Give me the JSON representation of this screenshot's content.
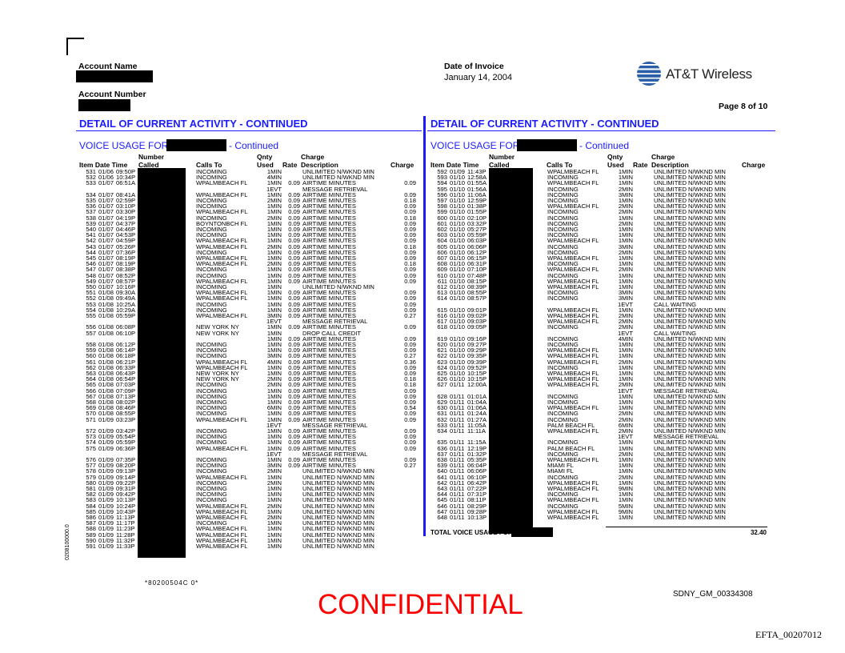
{
  "header": {
    "account_name_label": "Account Name",
    "account_number_label": "Account Number",
    "invoice_date_label": "Date of Invoice",
    "invoice_date": "January 14, 2004",
    "brand": "AT&T Wireless",
    "page_label": "Page  8 of 10"
  },
  "section_title": "DETAIL OF CURRENT ACTIVITY - CONTINUED",
  "voice_usage_for": "VOICE USAGE FOR",
  "continued": "- Continued",
  "columns": {
    "number": "Number",
    "called": "Called",
    "item_date_time": "Item Date  Time",
    "calls_to": "Calls To",
    "qnty": "Qnty",
    "used": "Used",
    "rate": "Rate",
    "charge_top": "Charge",
    "description": "Description",
    "charge": "Charge"
  },
  "colors": {
    "accent": "#1a1aff",
    "confidential": "#ff0000"
  },
  "left_rows": [
    [
      "531",
      "01/06",
      "09:50P",
      "INCOMING",
      "1MIN",
      "",
      "UNLIMITED N/WKND MIN",
      ""
    ],
    [
      "532",
      "01/06",
      "10:34P",
      "INCOMING",
      "4MIN",
      "",
      "UNLIMITED N/WKND MIN",
      ""
    ],
    [
      "533",
      "01/07",
      "06:51A",
      "WPALMBEACH FL",
      "1MIN",
      "0.09",
      "AIRTIME MINUTES",
      "0.09"
    ],
    [
      "",
      "",
      "",
      "",
      "1EVT",
      "",
      "MESSAGE RETRIEVAL",
      ""
    ],
    [
      "534",
      "01/07",
      "08:41A",
      "WPALMBEACH FL",
      "1MIN",
      "0.09",
      "AIRTIME MINUTES",
      "0.09"
    ],
    [
      "535",
      "01/07",
      "02:59P",
      "INCOMING",
      "2MIN",
      "0.09",
      "AIRTIME MINUTES",
      "0.18"
    ],
    [
      "536",
      "01/07",
      "03:10P",
      "INCOMING",
      "1MIN",
      "0.09",
      "AIRTIME MINUTES",
      "0.09"
    ],
    [
      "537",
      "01/07",
      "03:30P",
      "WPALMBEACH FL",
      "1MIN",
      "0.09",
      "AIRTIME MINUTES",
      "0.09"
    ],
    [
      "538",
      "01/07",
      "04:19P",
      "INCOMING",
      "2MIN",
      "0.09",
      "AIRTIME MINUTES",
      "0.18"
    ],
    [
      "539",
      "01/07",
      "04:37P",
      "BOYNTONBCH FL",
      "1MIN",
      "0.09",
      "AIRTIME MINUTES",
      "0.09"
    ],
    [
      "540",
      "01/07",
      "04:46P",
      "INCOMING",
      "1MIN",
      "0.09",
      "AIRTIME MINUTES",
      "0.09"
    ],
    [
      "541",
      "01/07",
      "04:53P",
      "INCOMING",
      "1MIN",
      "0.09",
      "AIRTIME MINUTES",
      "0.09"
    ],
    [
      "542",
      "01/07",
      "04:59P",
      "WPALMBEACH FL",
      "1MIN",
      "0.09",
      "AIRTIME MINUTES",
      "0.09"
    ],
    [
      "543",
      "01/07",
      "05:26P",
      "WPALMBEACH FL",
      "2MIN",
      "0.09",
      "AIRTIME MINUTES",
      "0.18"
    ],
    [
      "544",
      "01/07",
      "07:36P",
      "INCOMING",
      "1MIN",
      "0.09",
      "AIRTIME MINUTES",
      "0.09"
    ],
    [
      "545",
      "01/07",
      "08:19P",
      "WPALMBEACH FL",
      "1MIN",
      "0.09",
      "AIRTIME MINUTES",
      "0.09"
    ],
    [
      "546",
      "01/07",
      "08:19P",
      "WPALMBEACH FL",
      "2MIN",
      "0.09",
      "AIRTIME MINUTES",
      "0.18"
    ],
    [
      "547",
      "01/07",
      "08:38P",
      "INCOMING",
      "1MIN",
      "0.09",
      "AIRTIME MINUTES",
      "0.09"
    ],
    [
      "548",
      "01/07",
      "08:52P",
      "INCOMING",
      "1MIN",
      "0.09",
      "AIRTIME MINUTES",
      "0.09"
    ],
    [
      "549",
      "01/07",
      "08:57P",
      "WPALMBEACH FL",
      "1MIN",
      "0.09",
      "AIRTIME MINUTES",
      "0.09"
    ],
    [
      "550",
      "01/07",
      "10:16P",
      "INCOMING",
      "1MIN",
      "",
      "UNLIMITED N/WKND MIN",
      ""
    ],
    [
      "551",
      "01/08",
      "09:30A",
      "WPALMBEACH FL",
      "1MIN",
      "0.09",
      "AIRTIME MINUTES",
      "0.09"
    ],
    [
      "552",
      "01/08",
      "09:49A",
      "WPALMBEACH FL",
      "1MIN",
      "0.09",
      "AIRTIME MINUTES",
      "0.09"
    ],
    [
      "553",
      "01/08",
      "10:25A",
      "INCOMING",
      "1MIN",
      "0.09",
      "AIRTIME MINUTES",
      "0.09"
    ],
    [
      "554",
      "01/08",
      "10:29A",
      "INCOMING",
      "1MIN",
      "0.09",
      "AIRTIME MINUTES",
      "0.09"
    ],
    [
      "555",
      "01/08",
      "05:59P",
      "WPALMBEACH FL",
      "3MIN",
      "0.09",
      "AIRTIME MINUTES",
      "0.27"
    ],
    [
      "",
      "",
      "",
      "",
      "1EVT",
      "",
      "MESSAGE RETRIEVAL",
      ""
    ],
    [
      "556",
      "01/08",
      "06:08P",
      "NEW YORK NY",
      "1MIN",
      "0.09",
      "AIRTIME MINUTES",
      "0.09"
    ],
    [
      "557",
      "01/08",
      "06:10P",
      "NEW YORK NY",
      "1MIN",
      "",
      "DROP CALL CREDIT",
      ""
    ],
    [
      "",
      "",
      "",
      "",
      "1MIN",
      "0.09",
      "AIRTIME MINUTES",
      "0.09"
    ],
    [
      "558",
      "01/08",
      "06:12P",
      "INCOMING",
      "1MIN",
      "0.09",
      "AIRTIME MINUTES",
      "0.09"
    ],
    [
      "559",
      "01/08",
      "06:14P",
      "INCOMING",
      "1MIN",
      "0.09",
      "AIRTIME MINUTES",
      "0.09"
    ],
    [
      "560",
      "01/08",
      "06:18P",
      "INCOMING",
      "3MIN",
      "0.09",
      "AIRTIME MINUTES",
      "0.27"
    ],
    [
      "561",
      "01/08",
      "06:21P",
      "WPALMBEACH FL",
      "4MIN",
      "0.09",
      "AIRTIME MINUTES",
      "0.36"
    ],
    [
      "562",
      "01/08",
      "06:33P",
      "WPALMBEACH FL",
      "1MIN",
      "0.09",
      "AIRTIME MINUTES",
      "0.09"
    ],
    [
      "563",
      "01/08",
      "06:43P",
      "NEW YORK NY",
      "1MIN",
      "0.09",
      "AIRTIME MINUTES",
      "0.09"
    ],
    [
      "564",
      "01/08",
      "06:54P",
      "NEW YORK NY",
      "2MIN",
      "0.09",
      "AIRTIME MINUTES",
      "0.18"
    ],
    [
      "565",
      "01/08",
      "07:03P",
      "INCOMING",
      "2MIN",
      "0.09",
      "AIRTIME MINUTES",
      "0.18"
    ],
    [
      "566",
      "01/08",
      "07:09P",
      "INCOMING",
      "1MIN",
      "0.09",
      "AIRTIME MINUTES",
      "0.09"
    ],
    [
      "567",
      "01/08",
      "07:13P",
      "INCOMING",
      "1MIN",
      "0.09",
      "AIRTIME MINUTES",
      "0.09"
    ],
    [
      "568",
      "01/08",
      "08:02P",
      "INCOMING",
      "1MIN",
      "0.09",
      "AIRTIME MINUTES",
      "0.09"
    ],
    [
      "569",
      "01/08",
      "08:46P",
      "INCOMING",
      "6MIN",
      "0.09",
      "AIRTIME MINUTES",
      "0.54"
    ],
    [
      "570",
      "01/08",
      "08:55P",
      "INCOMING",
      "1MIN",
      "0.09",
      "AIRTIME MINUTES",
      "0.09"
    ],
    [
      "571",
      "01/09",
      "03:23P",
      "WPALMBEACH FL",
      "1MIN",
      "0.09",
      "AIRTIME MINUTES",
      "0.09"
    ],
    [
      "",
      "",
      "",
      "",
      "1EVT",
      "",
      "MESSAGE RETRIEVAL",
      ""
    ],
    [
      "572",
      "01/09",
      "03:42P",
      "INCOMING",
      "1MIN",
      "0.09",
      "AIRTIME MINUTES",
      "0.09"
    ],
    [
      "573",
      "01/09",
      "05:54P",
      "INCOMING",
      "1MIN",
      "0.09",
      "AIRTIME MINUTES",
      "0.09"
    ],
    [
      "574",
      "01/09",
      "05:59P",
      "INCOMING",
      "1MIN",
      "0.09",
      "AIRTIME MINUTES",
      "0.09"
    ],
    [
      "575",
      "01/09",
      "06:36P",
      "WPALMBEACH FL",
      "1MIN",
      "0.09",
      "AIRTIME MINUTES",
      "0.09"
    ],
    [
      "",
      "",
      "",
      "",
      "1EVT",
      "",
      "MESSAGE RETRIEVAL",
      ""
    ],
    [
      "576",
      "01/09",
      "07:35P",
      "INCOMING",
      "1MIN",
      "0.09",
      "AIRTIME MINUTES",
      "0.09"
    ],
    [
      "577",
      "01/09",
      "08:20P",
      "INCOMING",
      "3MIN",
      "0.09",
      "AIRTIME MINUTES",
      "0.27"
    ],
    [
      "578",
      "01/09",
      "09:13P",
      "INCOMING",
      "2MIN",
      "",
      "UNLIMITED N/WKND MIN",
      ""
    ],
    [
      "579",
      "01/09",
      "09:14P",
      "WPALMBEACH FL",
      "1MIN",
      "",
      "UNLIMITED N/WKND MIN",
      ""
    ],
    [
      "580",
      "01/09",
      "09:22P",
      "INCOMING",
      "2MIN",
      "",
      "UNLIMITED N/WKND MIN",
      ""
    ],
    [
      "581",
      "01/09",
      "09:31P",
      "INCOMING",
      "1MIN",
      "",
      "UNLIMITED N/WKND MIN",
      ""
    ],
    [
      "582",
      "01/09",
      "09:42P",
      "INCOMING",
      "1MIN",
      "",
      "UNLIMITED N/WKND MIN",
      ""
    ],
    [
      "583",
      "01/09",
      "10:13P",
      "INCOMING",
      "1MIN",
      "",
      "UNLIMITED N/WKND MIN",
      ""
    ],
    [
      "584",
      "01/09",
      "10:24P",
      "WPALMBEACH FL",
      "2MIN",
      "",
      "UNLIMITED N/WKND MIN",
      ""
    ],
    [
      "585",
      "01/09",
      "10:43P",
      "WPALMBEACH FL",
      "1MIN",
      "",
      "UNLIMITED N/WKND MIN",
      ""
    ],
    [
      "586",
      "01/09",
      "11:13P",
      "WPALMBEACH FL",
      "2MIN",
      "",
      "UNLIMITED N/WKND MIN",
      ""
    ],
    [
      "587",
      "01/09",
      "11:17P",
      "INCOMING",
      "1MIN",
      "",
      "UNLIMITED N/WKND MIN",
      ""
    ],
    [
      "588",
      "01/09",
      "11:23P",
      "WPALMBEACH FL",
      "1MIN",
      "",
      "UNLIMITED N/WKND MIN",
      ""
    ],
    [
      "589",
      "01/09",
      "11:28P",
      "WPALMBEACH FL",
      "1MIN",
      "",
      "UNLIMITED N/WKND MIN",
      ""
    ],
    [
      "590",
      "01/09",
      "11:32P",
      "WPALMBEACH FL",
      "1MIN",
      "",
      "UNLIMITED N/WKND MIN",
      ""
    ],
    [
      "591",
      "01/09",
      "11:33P",
      "WPALMBEACH FL",
      "1MIN",
      "",
      "UNLIMITED N/WKND MIN",
      ""
    ]
  ],
  "right_rows": [
    [
      "592",
      "01/09",
      "11:43P",
      "WPALMBEACH FL",
      "1MIN",
      "",
      "UNLIMITED N/WKND MIN",
      ""
    ],
    [
      "593",
      "01/10",
      "12:58A",
      "INCOMING",
      "1MIN",
      "",
      "UNLIMITED N/WKND MIN",
      ""
    ],
    [
      "594",
      "01/10",
      "01:55A",
      "WPALMBEACH FL",
      "1MIN",
      "",
      "UNLIMITED N/WKND MIN",
      ""
    ],
    [
      "595",
      "01/10",
      "01:56A",
      "INCOMING",
      "2MIN",
      "",
      "UNLIMITED N/WKND MIN",
      ""
    ],
    [
      "596",
      "01/10",
      "11:06A",
      "INCOMING",
      "3MIN",
      "",
      "UNLIMITED N/WKND MIN",
      ""
    ],
    [
      "597",
      "01/10",
      "12:59P",
      "INCOMING",
      "1MIN",
      "",
      "UNLIMITED N/WKND MIN",
      ""
    ],
    [
      "598",
      "01/10",
      "01:38P",
      "WPALMBEACH FL",
      "2MIN",
      "",
      "UNLIMITED N/WKND MIN",
      ""
    ],
    [
      "599",
      "01/10",
      "01:55P",
      "INCOMING",
      "2MIN",
      "",
      "UNLIMITED N/WKND MIN",
      ""
    ],
    [
      "600",
      "01/10",
      "02:10P",
      "INCOMING",
      "1MIN",
      "",
      "UNLIMITED N/WKND MIN",
      ""
    ],
    [
      "601",
      "01/10",
      "03:32P",
      "INCOMING",
      "2MIN",
      "",
      "UNLIMITED N/WKND MIN",
      ""
    ],
    [
      "602",
      "01/10",
      "05:27P",
      "INCOMING",
      "1MIN",
      "",
      "UNLIMITED N/WKND MIN",
      ""
    ],
    [
      "603",
      "01/10",
      "05:59P",
      "INCOMING",
      "1MIN",
      "",
      "UNLIMITED N/WKND MIN",
      ""
    ],
    [
      "604",
      "01/10",
      "06:03P",
      "WPALMBEACH FL",
      "1MIN",
      "",
      "UNLIMITED N/WKND MIN",
      ""
    ],
    [
      "605",
      "01/10",
      "06:06P",
      "INCOMING",
      "3MIN",
      "",
      "UNLIMITED N/WKND MIN",
      ""
    ],
    [
      "606",
      "01/10",
      "06:12P",
      "INCOMING",
      "2MIN",
      "",
      "UNLIMITED N/WKND MIN",
      ""
    ],
    [
      "607",
      "01/10",
      "06:15P",
      "WPALMBEACH FL",
      "1MIN",
      "",
      "UNLIMITED N/WKND MIN",
      ""
    ],
    [
      "608",
      "01/10",
      "06:31P",
      "INCOMING",
      "1MIN",
      "",
      "UNLIMITED N/WKND MIN",
      ""
    ],
    [
      "609",
      "01/10",
      "07:10P",
      "WPALMBEACH FL",
      "2MIN",
      "",
      "UNLIMITED N/WKND MIN",
      ""
    ],
    [
      "610",
      "01/10",
      "07:48P",
      "INCOMING",
      "1MIN",
      "",
      "UNLIMITED N/WKND MIN",
      ""
    ],
    [
      "611",
      "01/10",
      "08:15P",
      "WPALMBEACH FL",
      "1MIN",
      "",
      "UNLIMITED N/WKND MIN",
      ""
    ],
    [
      "612",
      "01/10",
      "08:39P",
      "WPALMBEACH FL",
      "1MIN",
      "",
      "UNLIMITED N/WKND MIN",
      ""
    ],
    [
      "613",
      "01/10",
      "08:55P",
      "INCOMING",
      "3MIN",
      "",
      "UNLIMITED N/WKND MIN",
      ""
    ],
    [
      "614",
      "01/10",
      "08:57P",
      "INCOMING",
      "3MIN",
      "",
      "UNLIMITED N/WKND MIN",
      ""
    ],
    [
      "",
      "",
      "",
      "",
      "1EVT",
      "",
      "CALL WAITING",
      ""
    ],
    [
      "615",
      "01/10",
      "09:01P",
      "WPALMBEACH FL",
      "1MIN",
      "",
      "UNLIMITED N/WKND MIN",
      ""
    ],
    [
      "616",
      "01/10",
      "09:02P",
      "WPALMBEACH FL",
      "2MIN",
      "",
      "UNLIMITED N/WKND MIN",
      ""
    ],
    [
      "617",
      "01/10",
      "09:03P",
      "WPALMBEACH FL",
      "2MIN",
      "",
      "UNLIMITED N/WKND MIN",
      ""
    ],
    [
      "618",
      "01/10",
      "09:05P",
      "INCOMING",
      "2MIN",
      "",
      "UNLIMITED N/WKND MIN",
      ""
    ],
    [
      "",
      "",
      "",
      "",
      "1EVT",
      "",
      "CALL WAITING",
      ""
    ],
    [
      "619",
      "01/10",
      "09:16P",
      "INCOMING",
      "4MIN",
      "",
      "UNLIMITED N/WKND MIN",
      ""
    ],
    [
      "620",
      "01/10",
      "09:27P",
      "INCOMING",
      "1MIN",
      "",
      "UNLIMITED N/WKND MIN",
      ""
    ],
    [
      "621",
      "01/10",
      "09:29P",
      "WPALMBEACH FL",
      "1MIN",
      "",
      "UNLIMITED N/WKND MIN",
      ""
    ],
    [
      "622",
      "01/10",
      "09:35P",
      "WPALMBEACH FL",
      "1MIN",
      "",
      "UNLIMITED N/WKND MIN",
      ""
    ],
    [
      "623",
      "01/10",
      "09:39P",
      "WPALMBEACH FL",
      "2MIN",
      "",
      "UNLIMITED N/WKND MIN",
      ""
    ],
    [
      "624",
      "01/10",
      "09:52P",
      "INCOMING",
      "1MIN",
      "",
      "UNLIMITED N/WKND MIN",
      ""
    ],
    [
      "625",
      "01/10",
      "10:15P",
      "WPALMBEACH FL",
      "1MIN",
      "",
      "UNLIMITED N/WKND MIN",
      ""
    ],
    [
      "626",
      "01/10",
      "10:15P",
      "WPALMBEACH FL",
      "1MIN",
      "",
      "UNLIMITED N/WKND MIN",
      ""
    ],
    [
      "627",
      "01/11",
      "12:00A",
      "WPALMBEACH FL",
      "2MIN",
      "",
      "UNLIMITED N/WKND MIN",
      ""
    ],
    [
      "",
      "",
      "",
      "",
      "1EVT",
      "",
      "MESSAGE RETRIEVAL",
      ""
    ],
    [
      "628",
      "01/11",
      "01:01A",
      "INCOMING",
      "1MIN",
      "",
      "UNLIMITED N/WKND MIN",
      ""
    ],
    [
      "629",
      "01/11",
      "01:04A",
      "INCOMING",
      "1MIN",
      "",
      "UNLIMITED N/WKND MIN",
      ""
    ],
    [
      "630",
      "01/11",
      "01:06A",
      "WPALMBEACH FL",
      "1MIN",
      "",
      "UNLIMITED N/WKND MIN",
      ""
    ],
    [
      "631",
      "01/11",
      "01:24A",
      "INCOMING",
      "2MIN",
      "",
      "UNLIMITED N/WKND MIN",
      ""
    ],
    [
      "632",
      "01/11",
      "01:27A",
      "INCOMING",
      "2MIN",
      "",
      "UNLIMITED N/WKND MIN",
      ""
    ],
    [
      "633",
      "01/11",
      "11:05A",
      "PALM BEACH FL",
      "6MIN",
      "",
      "UNLIMITED N/WKND MIN",
      ""
    ],
    [
      "634",
      "01/11",
      "11:11A",
      "WPALMBEACH FL",
      "2MIN",
      "",
      "UNLIMITED N/WKND MIN",
      ""
    ],
    [
      "",
      "",
      "",
      "",
      "1EVT",
      "",
      "MESSAGE RETRIEVAL",
      ""
    ],
    [
      "635",
      "01/11",
      "11:15A",
      "INCOMING",
      "1MIN",
      "",
      "UNLIMITED N/WKND MIN",
      ""
    ],
    [
      "636",
      "01/11",
      "12:19P",
      "PALM BEACH FL",
      "1MIN",
      "",
      "UNLIMITED N/WKND MIN",
      ""
    ],
    [
      "637",
      "01/11",
      "01:32P",
      "INCOMING",
      "2MIN",
      "",
      "UNLIMITED N/WKND MIN",
      ""
    ],
    [
      "638",
      "01/11",
      "05:35P",
      "WPALMBEACH FL",
      "1MIN",
      "",
      "UNLIMITED N/WKND MIN",
      ""
    ],
    [
      "639",
      "01/11",
      "06:04P",
      "MIAMI FL",
      "1MIN",
      "",
      "UNLIMITED N/WKND MIN",
      ""
    ],
    [
      "640",
      "01/11",
      "06:06P",
      "MIAMI FL",
      "1MIN",
      "",
      "UNLIMITED N/WKND MIN",
      ""
    ],
    [
      "641",
      "01/11",
      "06:10P",
      "INCOMING",
      "2MIN",
      "",
      "UNLIMITED N/WKND MIN",
      ""
    ],
    [
      "642",
      "01/11",
      "06:42P",
      "WPALMBEACH FL",
      "1MIN",
      "",
      "UNLIMITED N/WKND MIN",
      ""
    ],
    [
      "643",
      "01/11",
      "07:22P",
      "WPALMBEACH FL",
      "9MIN",
      "",
      "UNLIMITED N/WKND MIN",
      ""
    ],
    [
      "644",
      "01/11",
      "07:31P",
      "INCOMING",
      "1MIN",
      "",
      "UNLIMITED N/WKND MIN",
      ""
    ],
    [
      "645",
      "01/11",
      "08:11P",
      "WPALMBEACH FL",
      "1MIN",
      "",
      "UNLIMITED N/WKND MIN",
      ""
    ],
    [
      "646",
      "01/11",
      "08:29P",
      "INCOMING",
      "5MIN",
      "",
      "UNLIMITED N/WKND MIN",
      ""
    ],
    [
      "647",
      "01/11",
      "09:28P",
      "WPALMBEACH FL",
      "9MIN",
      "",
      "UNLIMITED N/WKND MIN",
      ""
    ],
    [
      "648",
      "01/11",
      "10:13P",
      "WPALMBEACH FL",
      "1MIN",
      "",
      "UNLIMITED N/WKND MIN",
      ""
    ]
  ],
  "total": {
    "label": "TOTAL VOICE USAGE FOR",
    "amount": "32.40"
  },
  "footer": {
    "barcode_text": "*80200504C 0*",
    "confidential": "CONFIDENTIAL",
    "bates": "SDNY_GM_00334308",
    "efta": "EFTA_00207012",
    "side_code": "0208100000.0"
  }
}
